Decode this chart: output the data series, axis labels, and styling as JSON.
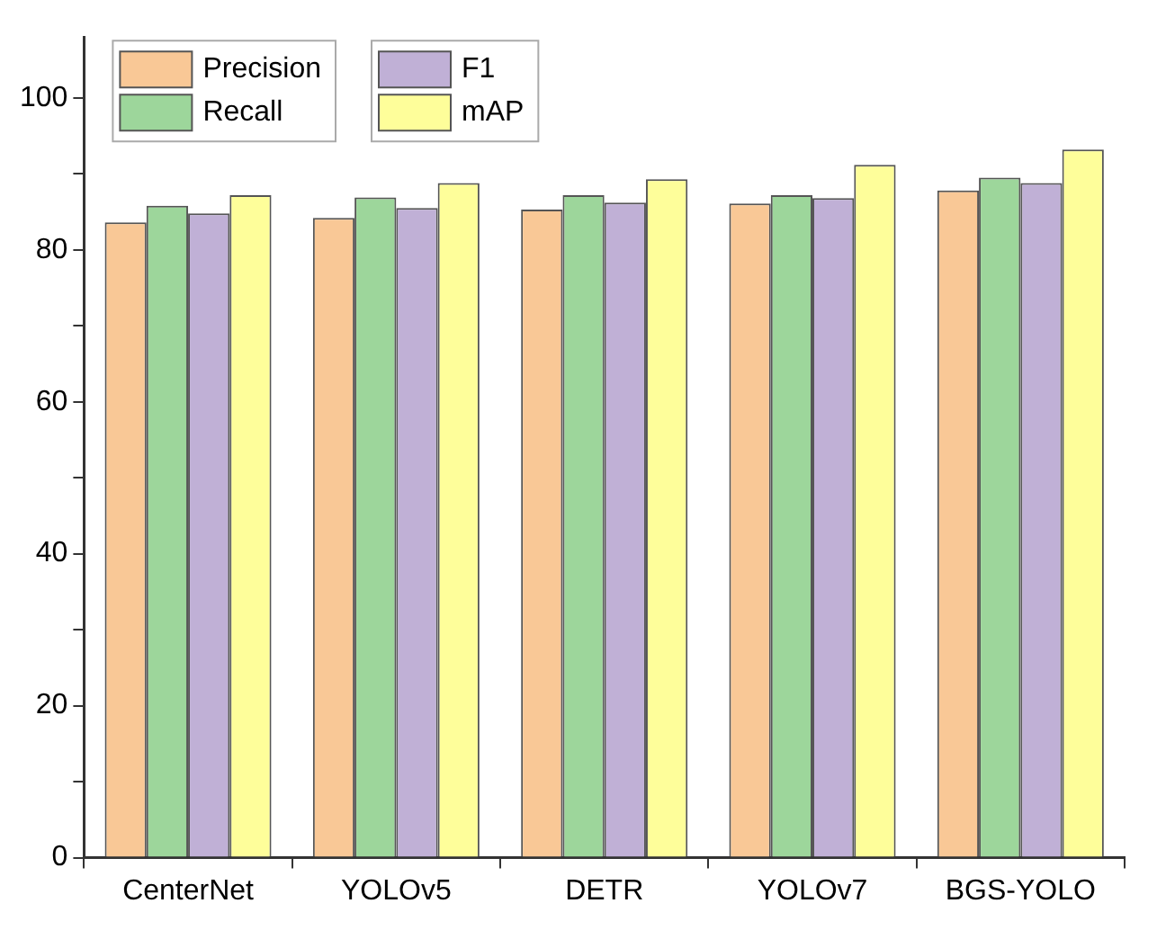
{
  "chart_data": {
    "type": "bar",
    "categories": [
      "CenterNet",
      "YOLOv5",
      "DETR",
      "YOLOv7",
      "BGS-YOLO"
    ],
    "series": [
      {
        "name": "Precision",
        "color": "#f9c896",
        "values": [
          83.6,
          84.2,
          85.3,
          86.1,
          87.8
        ]
      },
      {
        "name": "Recall",
        "color": "#9dd69b",
        "values": [
          85.8,
          86.9,
          87.2,
          87.2,
          89.5
        ]
      },
      {
        "name": "F1",
        "color": "#c0b0d6",
        "values": [
          84.8,
          85.5,
          86.2,
          86.8,
          88.8
        ]
      },
      {
        "name": "mAP",
        "color": "#fefe9a",
        "values": [
          87.2,
          88.8,
          89.3,
          91.2,
          93.2
        ]
      }
    ],
    "ylim": [
      0,
      108
    ],
    "yticks": [
      0,
      {
        "value": 10,
        "label": null
      },
      20,
      {
        "value": 30,
        "label": null
      },
      40,
      {
        "value": 50,
        "label": null
      },
      60,
      {
        "value": 70,
        "label": null
      },
      80,
      {
        "value": 90,
        "label": null
      },
      100
    ],
    "grid": false,
    "legend": "top left"
  }
}
